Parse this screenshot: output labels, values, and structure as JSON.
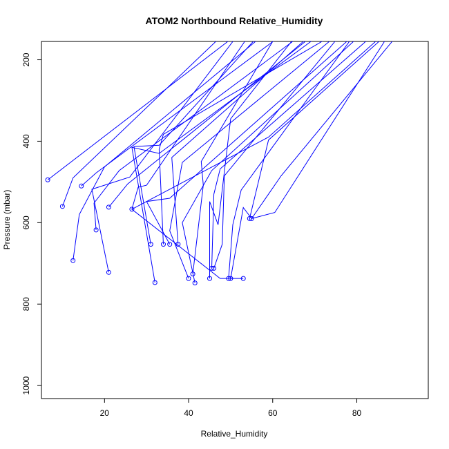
{
  "chart_data": {
    "type": "line",
    "title": "ATOM2 Northbound Relative_Humidity",
    "xlabel": "Relative_Humidity",
    "ylabel": "Pressure (mbar)",
    "xlim": [
      5,
      97
    ],
    "ylim": [
      1032,
      155
    ],
    "y_reversed": true,
    "x_ticks": [
      20,
      40,
      60,
      80
    ],
    "x_tick_labels": [
      "20",
      "40",
      "60",
      "80"
    ],
    "y_ticks": [
      200,
      400,
      600,
      800,
      1000
    ],
    "y_tick_labels": [
      "200",
      "400",
      "600",
      "800",
      "1000"
    ],
    "series_color": "#0000ff",
    "grid": false,
    "series": [
      {
        "points": [
          [
            6.5,
            495
          ],
          [
            55,
            110
          ]
        ]
      },
      {
        "points": [
          [
            10,
            560
          ],
          [
            12.5,
            490
          ],
          [
            48,
            140
          ]
        ]
      },
      {
        "points": [
          [
            12.5,
            693
          ],
          [
            14,
            580
          ],
          [
            20,
            463
          ],
          [
            60,
            120
          ]
        ]
      },
      {
        "points": [
          [
            14.5,
            510
          ],
          [
            18,
            478
          ],
          [
            64,
            125
          ]
        ]
      },
      {
        "points": [
          [
            18,
            618
          ],
          [
            17.5,
            552
          ],
          [
            23.5,
            472
          ],
          [
            68,
            130
          ]
        ]
      },
      {
        "points": [
          [
            21,
            722
          ],
          [
            17,
            518
          ],
          [
            26,
            488
          ],
          [
            52,
            135
          ]
        ]
      },
      {
        "points": [
          [
            21,
            562
          ],
          [
            25.5,
            505
          ],
          [
            72,
            120
          ]
        ]
      },
      {
        "points": [
          [
            26.5,
            567
          ],
          [
            28,
            513
          ],
          [
            30,
            508
          ],
          [
            56,
            115
          ]
        ]
      },
      {
        "points": [
          [
            32,
            747
          ],
          [
            26.5,
            415
          ],
          [
            33,
            430
          ],
          [
            75,
            110
          ]
        ]
      },
      {
        "points": [
          [
            31,
            653
          ],
          [
            27,
            413
          ],
          [
            33,
            410
          ],
          [
            58,
            125
          ]
        ]
      },
      {
        "points": [
          [
            34,
            653
          ],
          [
            33,
            420
          ],
          [
            34,
            383
          ],
          [
            80,
            105
          ]
        ]
      },
      {
        "points": [
          [
            35.5,
            653
          ],
          [
            30,
            548
          ],
          [
            35.5,
            540
          ],
          [
            82,
            115
          ]
        ]
      },
      {
        "points": [
          [
            37.5,
            653
          ],
          [
            36,
            440
          ],
          [
            70,
            130
          ]
        ]
      },
      {
        "points": [
          [
            40,
            737
          ],
          [
            35.5,
            620
          ],
          [
            38.5,
            452
          ],
          [
            77,
            125
          ]
        ]
      },
      {
        "points": [
          [
            41,
            726
          ],
          [
            43.5,
            508
          ],
          [
            43,
            450
          ],
          [
            62,
            120
          ]
        ]
      },
      {
        "points": [
          [
            41.5,
            748
          ],
          [
            38.5,
            600
          ],
          [
            45.5,
            472
          ],
          [
            84,
            110
          ]
        ]
      },
      {
        "points": [
          [
            45,
            737
          ],
          [
            45,
            548
          ],
          [
            47,
            605
          ],
          [
            50,
            345
          ],
          [
            66,
            135
          ]
        ]
      },
      {
        "points": [
          [
            45.5,
            712
          ],
          [
            46,
            530
          ],
          [
            47.5,
            468
          ],
          [
            86,
            120
          ]
        ]
      },
      {
        "points": [
          [
            46,
            712
          ],
          [
            48,
            653
          ],
          [
            48.5,
            485
          ],
          [
            78,
            115
          ]
        ]
      },
      {
        "points": [
          [
            49.5,
            737
          ],
          [
            50.5,
            605
          ],
          [
            52.5,
            520
          ],
          [
            80,
            130
          ]
        ]
      },
      {
        "points": [
          [
            50,
            737
          ],
          [
            53,
            563
          ],
          [
            55,
            590
          ],
          [
            60.5,
            575
          ],
          [
            90,
            100
          ]
        ]
      },
      {
        "points": [
          [
            53,
            737
          ],
          [
            47.5,
            737
          ],
          [
            26.5,
            567
          ],
          [
            59,
            390
          ],
          [
            85,
            150
          ]
        ]
      },
      {
        "points": [
          [
            54.5,
            590
          ],
          [
            59,
            397
          ],
          [
            88,
            130
          ]
        ]
      },
      {
        "points": [
          [
            55,
            590
          ],
          [
            62,
            485
          ],
          [
            92,
            110
          ]
        ]
      }
    ]
  }
}
